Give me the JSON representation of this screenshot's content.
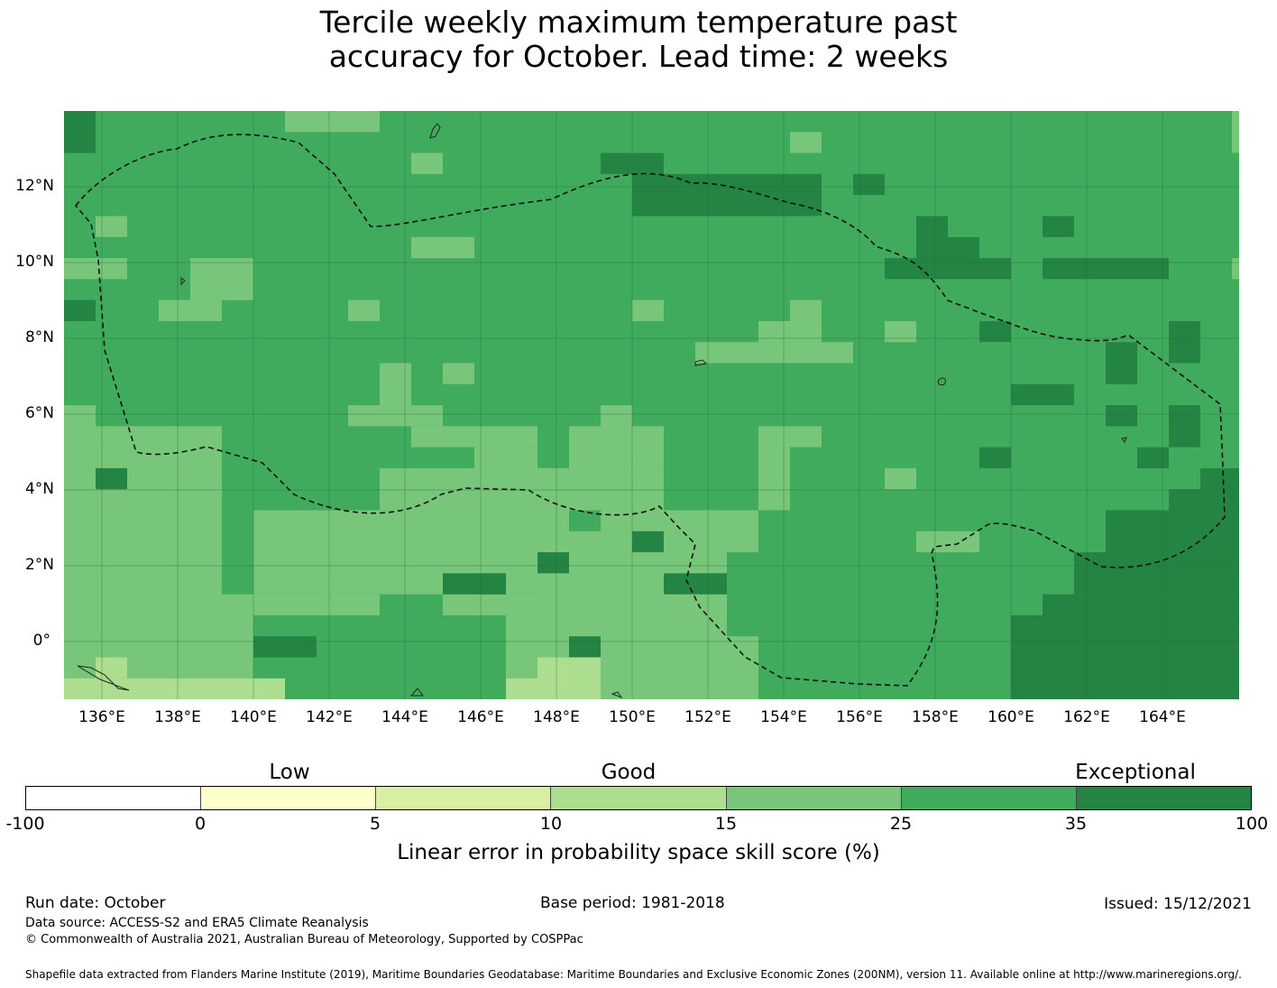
{
  "title_line1": "Tercile weekly maximum temperature past",
  "title_line2": "accuracy for October. Lead time: 2 weeks",
  "map": {
    "lat_labels": [
      "12°N",
      "10°N",
      "8°N",
      "6°N",
      "4°N",
      "2°N",
      "0°"
    ],
    "lon_labels": [
      "136°E",
      "138°E",
      "140°E",
      "142°E",
      "144°E",
      "146°E",
      "148°E",
      "150°E",
      "152°E",
      "154°E",
      "156°E",
      "158°E",
      "160°E",
      "162°E",
      "164°E"
    ],
    "base_color": "#41ab5d",
    "cell_colors": {
      "c15_25": "#78c679",
      "c10_15": "#addd8e",
      "c35_100": "#238443"
    }
  },
  "colorbar": {
    "categories": [
      "Low",
      "Good",
      "Exceptional"
    ],
    "ticks": [
      "-100",
      "0",
      "5",
      "10",
      "15",
      "25",
      "35",
      "100"
    ],
    "colors": [
      "#ffffff",
      "#ffffcc",
      "#d9f0a3",
      "#addd8e",
      "#78c679",
      "#41ab5d",
      "#238443"
    ],
    "label": "Linear error in probability space skill score (%)"
  },
  "footer": {
    "run_date": "Run date: October",
    "base_period": "Base period: 1981-2018",
    "issued": "Issued: 15/12/2021",
    "data_source": "Data source: ACCESS-S2 and ERA5 Climate Reanalysis",
    "copyright": "© Commonwealth of Australia 2021, Australian Bureau of Meteorology, Supported by COSPPac",
    "shapefile": "Shapefile data extracted from Flanders Marine Institute (2019), Maritime Boundaries Geodatabase: Maritime Boundaries and Exclusive Economic Zones (200NM), version 11. Available online at http://www.marineregions.org/."
  }
}
